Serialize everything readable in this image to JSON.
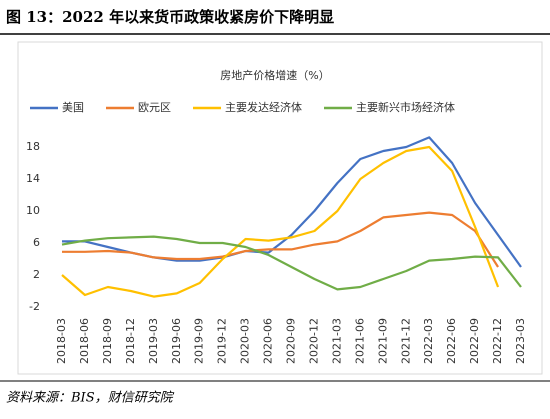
{
  "header": {
    "title": "图 13：2022 年以来货币政策收紧房价下降明显"
  },
  "source": "资料来源：BIS，财信研究院",
  "chart_data": {
    "type": "line",
    "title": "房地产价格增速（%）",
    "categories": [
      "2018-03",
      "2018-06",
      "2018-09",
      "2018-12",
      "2019-03",
      "2019-06",
      "2019-09",
      "2019-12",
      "2020-03",
      "2020-06",
      "2020-09",
      "2020-12",
      "2021-03",
      "2021-06",
      "2021-09",
      "2021-12",
      "2022-03",
      "2022-06",
      "2022-09",
      "2022-12",
      "2023-03"
    ],
    "series": [
      {
        "name": "美国",
        "color": "#4472c4",
        "values": [
          6.2,
          6.2,
          5.5,
          4.8,
          4.2,
          3.8,
          3.8,
          4.2,
          5.0,
          4.8,
          7.0,
          10.0,
          13.5,
          16.5,
          17.5,
          18.0,
          19.2,
          16.0,
          11.0,
          7.0,
          3.0
        ]
      },
      {
        "name": "欧元区",
        "color": "#ed7d31",
        "values": [
          4.9,
          4.9,
          5.0,
          4.8,
          4.2,
          4.0,
          4.0,
          4.3,
          5.0,
          5.2,
          5.2,
          5.8,
          6.2,
          7.5,
          9.2,
          9.5,
          9.8,
          9.5,
          7.5,
          3.0,
          null
        ]
      },
      {
        "name": "主要发达经济体",
        "color": "#ffc000",
        "values": [
          2.0,
          -0.5,
          0.5,
          0.0,
          -0.7,
          -0.3,
          1.0,
          4.0,
          6.5,
          6.3,
          6.7,
          7.5,
          10.0,
          14.0,
          16.0,
          17.5,
          18.0,
          15.0,
          8.0,
          0.5,
          null
        ]
      },
      {
        "name": "主要新兴市场经济体",
        "color": "#70ad47",
        "values": [
          5.8,
          6.3,
          6.6,
          6.7,
          6.8,
          6.5,
          6.0,
          6.0,
          5.5,
          4.5,
          3.0,
          1.5,
          0.2,
          0.5,
          1.5,
          2.5,
          3.8,
          4.0,
          4.3,
          4.2,
          0.5
        ]
      }
    ],
    "ylim": [
      -2,
      20
    ],
    "yticks": [
      -2,
      2,
      6,
      10,
      14,
      18
    ],
    "legend": "top"
  }
}
